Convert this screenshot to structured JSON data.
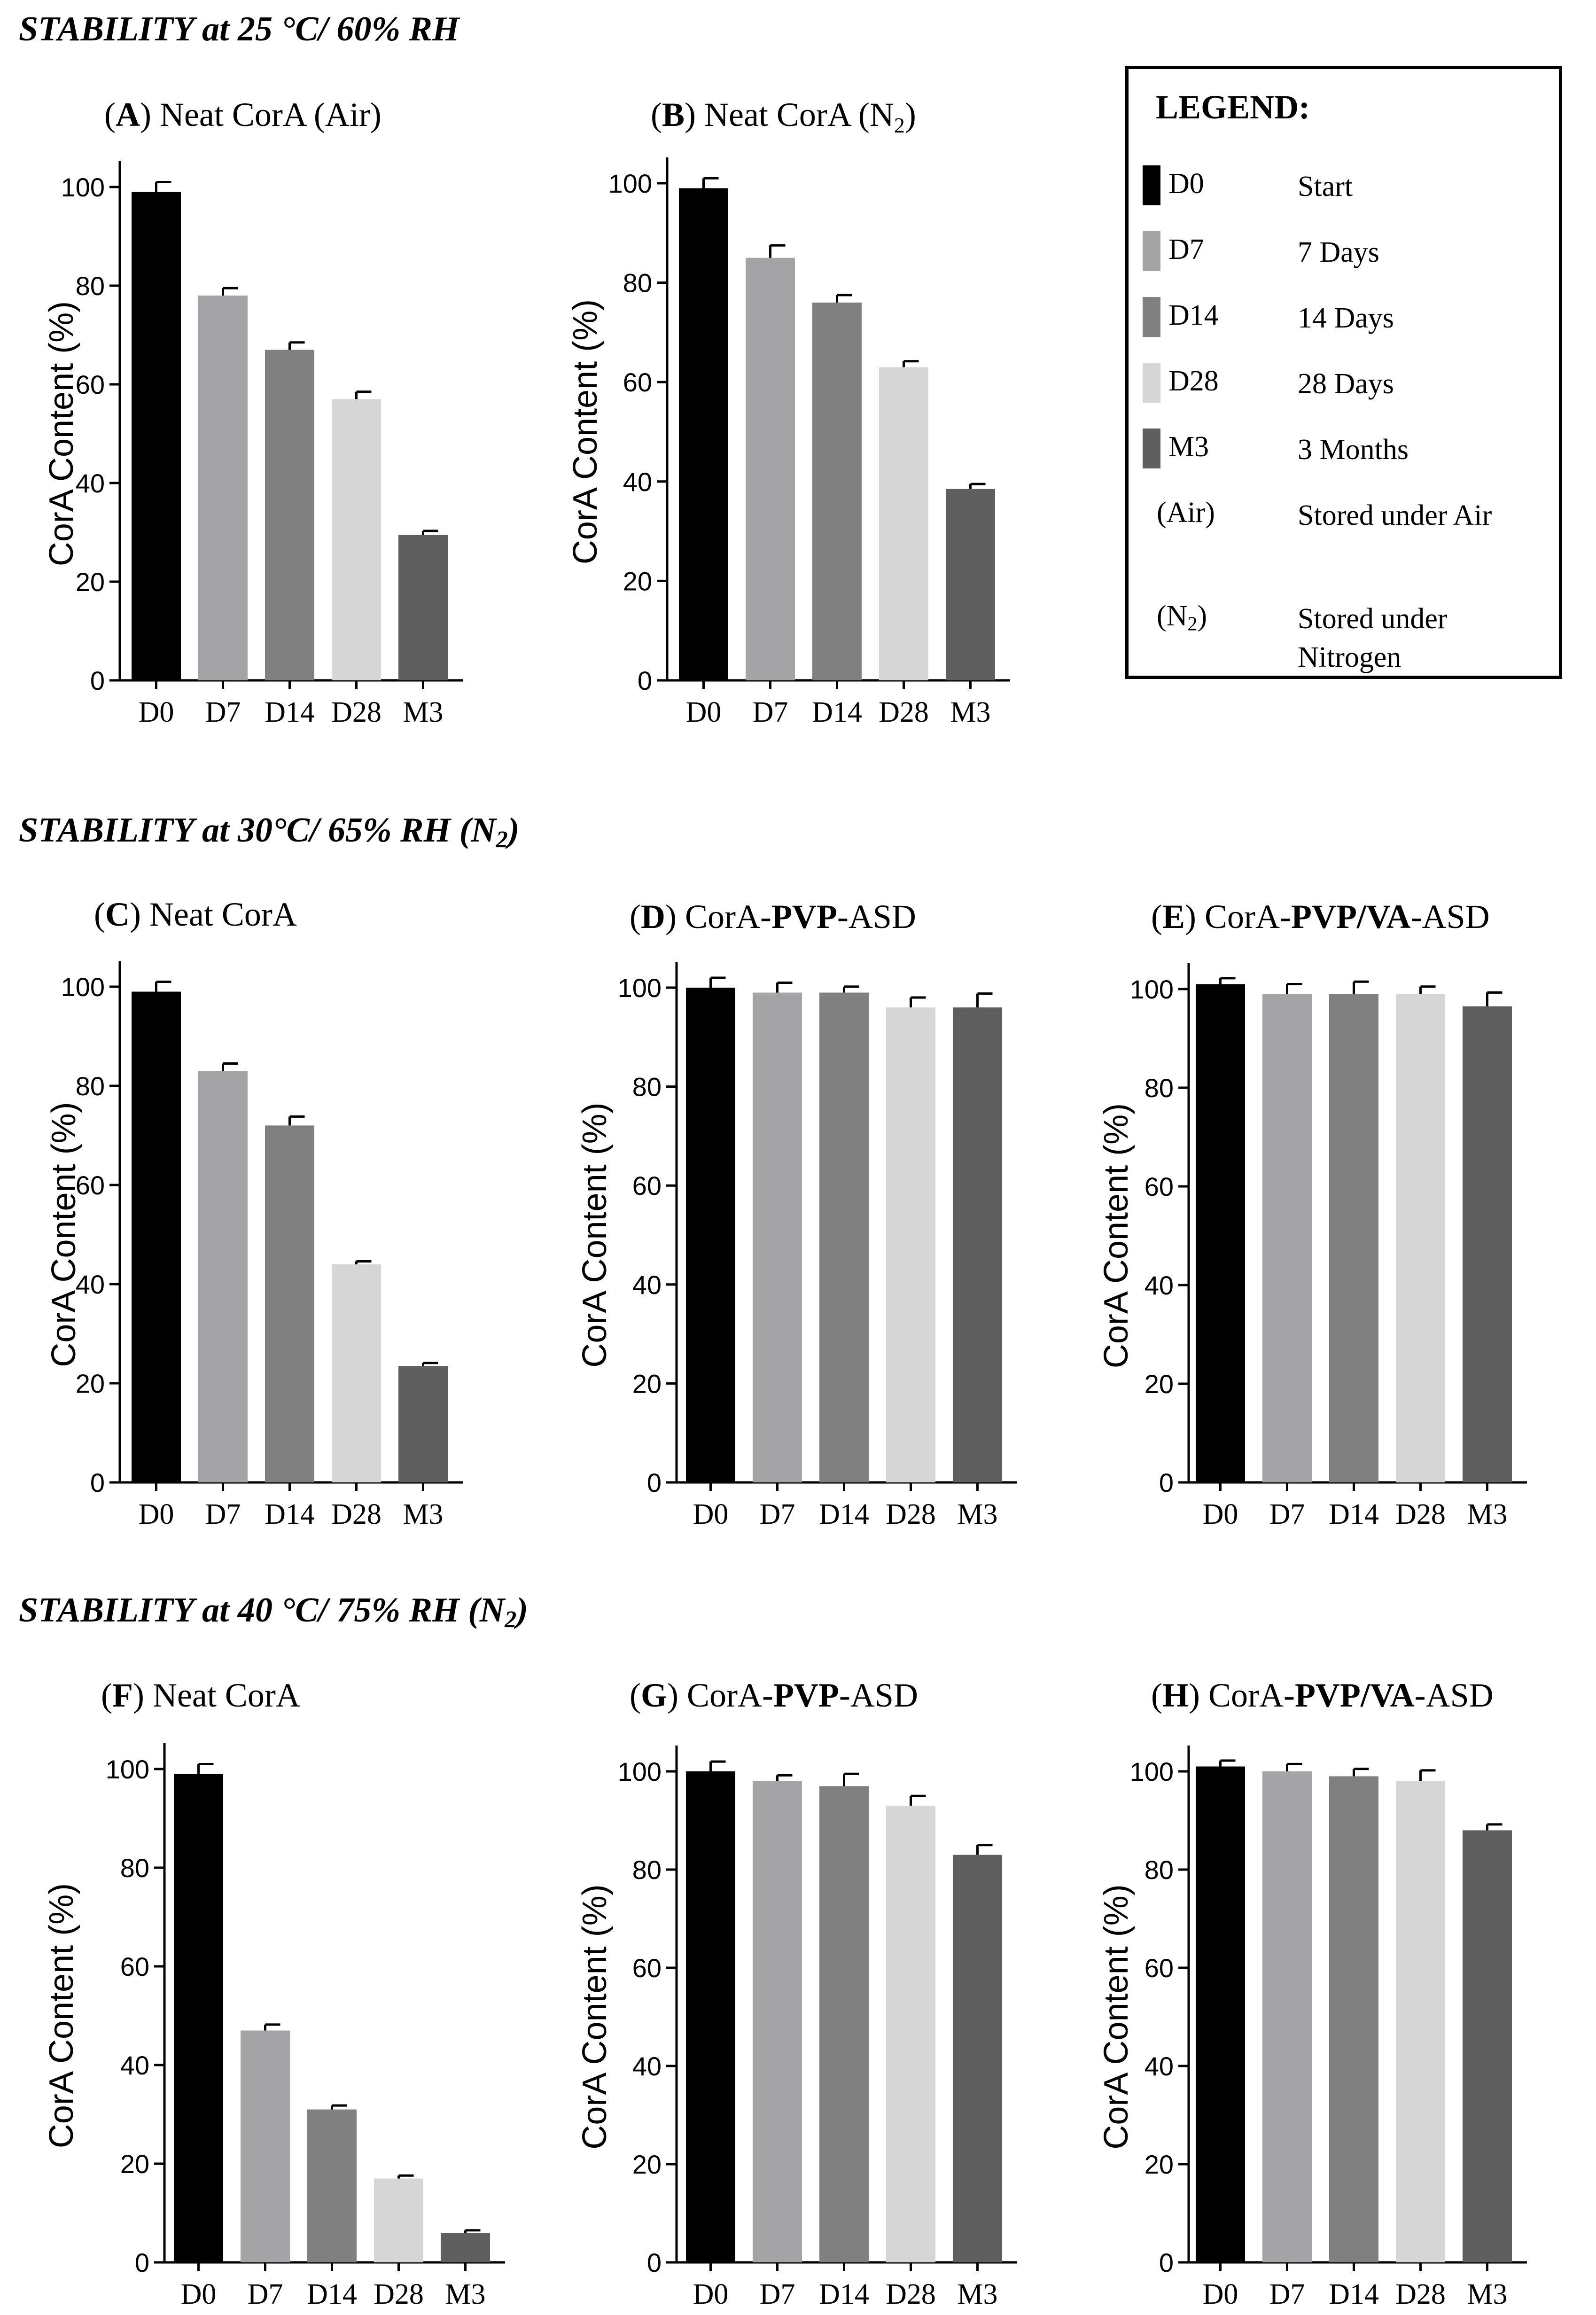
{
  "sections": [
    {
      "text": "STABILITY at 25 °C/ 60% RH",
      "subscript": "",
      "suffix": ""
    },
    {
      "text": "STABILITY at 30°C/ 65% RH (N",
      "subscript": "2",
      "suffix": ")"
    },
    {
      "text": "STABILITY at 40 °C/ 75% RH (N",
      "subscript": "2",
      "suffix": ")"
    }
  ],
  "legend": {
    "title": "LEGEND:",
    "items": [
      {
        "code": "D0",
        "desc": "Start",
        "color": "#000000"
      },
      {
        "code": "D7",
        "desc": "7 Days",
        "color": "#a4a4a6"
      },
      {
        "code": "D14",
        "desc": "14 Days",
        "color": "#808080"
      },
      {
        "code": "D28",
        "desc": "28 Days",
        "color": "#d6d6d6"
      },
      {
        "code": "M3",
        "desc": "3 Months",
        "color": "#5f5f5f"
      }
    ],
    "notes": [
      {
        "code": "(Air)",
        "code_sub": "",
        "code_suffix": "",
        "desc": "Stored under Air"
      },
      {
        "code": "(N",
        "code_sub": "2",
        "code_suffix": ")",
        "desc": "Stored under Nitrogen"
      }
    ]
  },
  "chart_data": [
    {
      "id": "A",
      "type": "bar",
      "title": {
        "letter": "A",
        "before": "Neat CorA (Air)",
        "bold": "",
        "after": "",
        "sub": ""
      },
      "categories": [
        "D0",
        "D7",
        "D14",
        "D28",
        "M3"
      ],
      "values": [
        99,
        78,
        67,
        57,
        29.5
      ],
      "errors": [
        2,
        1.5,
        1.5,
        1.5,
        0.8
      ],
      "ylabel": "CorA Content (%)",
      "ylim": [
        0,
        100
      ],
      "yticks": [
        0,
        20,
        40,
        60,
        80,
        100
      ]
    },
    {
      "id": "B",
      "type": "bar",
      "title": {
        "letter": "B",
        "before": "Neat CorA (N",
        "bold": "",
        "after": ")",
        "sub": "2"
      },
      "categories": [
        "D0",
        "D7",
        "D14",
        "D28",
        "M3"
      ],
      "values": [
        99,
        85,
        76,
        63,
        38.5
      ],
      "errors": [
        2,
        2.5,
        1.5,
        1.2,
        1
      ],
      "ylabel": "CorA Content (%)",
      "ylim": [
        0,
        100
      ],
      "yticks": [
        0,
        20,
        40,
        60,
        80,
        100
      ]
    },
    {
      "id": "C",
      "type": "bar",
      "title": {
        "letter": "C",
        "before": "Neat CorA",
        "bold": "",
        "after": "",
        "sub": ""
      },
      "categories": [
        "D0",
        "D7",
        "D14",
        "D28",
        "M3"
      ],
      "values": [
        99,
        83,
        72,
        44,
        23.5
      ],
      "errors": [
        2,
        1.5,
        1.8,
        0.6,
        0.6
      ],
      "ylabel": "CorA Content (%)",
      "ylim": [
        0,
        100
      ],
      "yticks": [
        0,
        20,
        40,
        60,
        80,
        100
      ]
    },
    {
      "id": "D",
      "type": "bar",
      "title": {
        "letter": "D",
        "before": "CorA-",
        "bold": "PVP",
        "after": "-ASD",
        "sub": ""
      },
      "categories": [
        "D0",
        "D7",
        "D14",
        "D28",
        "M3"
      ],
      "values": [
        100,
        99,
        99,
        96,
        96
      ],
      "errors": [
        2,
        2,
        1.2,
        2,
        2.8
      ],
      "ylabel": "CorA Content (%)",
      "ylim": [
        0,
        100
      ],
      "yticks": [
        0,
        20,
        40,
        60,
        80,
        100
      ]
    },
    {
      "id": "E",
      "type": "bar",
      "title": {
        "letter": "E",
        "before": "CorA-",
        "bold": "PVP/VA",
        "after": "-ASD",
        "sub": ""
      },
      "categories": [
        "D0",
        "D7",
        "D14",
        "D28",
        "M3"
      ],
      "values": [
        101,
        99,
        99,
        99,
        96.5
      ],
      "errors": [
        1.2,
        2,
        2.5,
        1.5,
        2.8
      ],
      "ylabel": "CorA Content (%)",
      "ylim": [
        0,
        100
      ],
      "yticks": [
        0,
        20,
        40,
        60,
        80,
        100
      ]
    },
    {
      "id": "F",
      "type": "bar",
      "title": {
        "letter": "F",
        "before": "Neat CorA",
        "bold": "",
        "after": "",
        "sub": ""
      },
      "categories": [
        "D0",
        "D7",
        "D14",
        "D28",
        "M3"
      ],
      "values": [
        99,
        47,
        31,
        17,
        6
      ],
      "errors": [
        2,
        1.2,
        0.8,
        0.6,
        0.5
      ],
      "ylabel": "CorA Content (%)",
      "ylim": [
        0,
        100
      ],
      "yticks": [
        0,
        20,
        40,
        60,
        80,
        100
      ]
    },
    {
      "id": "G",
      "type": "bar",
      "title": {
        "letter": "G",
        "before": "CorA-",
        "bold": "PVP",
        "after": "-ASD",
        "sub": ""
      },
      "categories": [
        "D0",
        "D7",
        "D14",
        "D28",
        "M3"
      ],
      "values": [
        100,
        98,
        97,
        93,
        83
      ],
      "errors": [
        2,
        1.2,
        2.5,
        2,
        2
      ],
      "ylabel": "CorA Content (%)",
      "ylim": [
        0,
        100
      ],
      "yticks": [
        0,
        20,
        40,
        60,
        80,
        100
      ]
    },
    {
      "id": "H",
      "type": "bar",
      "title": {
        "letter": "H",
        "before": "CorA-",
        "bold": "PVP/VA",
        "after": "-ASD",
        "sub": ""
      },
      "categories": [
        "D0",
        "D7",
        "D14",
        "D28",
        "M3"
      ],
      "values": [
        101,
        100,
        99,
        98,
        88
      ],
      "errors": [
        1.2,
        1.5,
        1.5,
        2.2,
        1.2
      ],
      "ylabel": "CorA Content (%)",
      "ylim": [
        0,
        100
      ],
      "yticks": [
        0,
        20,
        40,
        60,
        80,
        100
      ]
    }
  ]
}
